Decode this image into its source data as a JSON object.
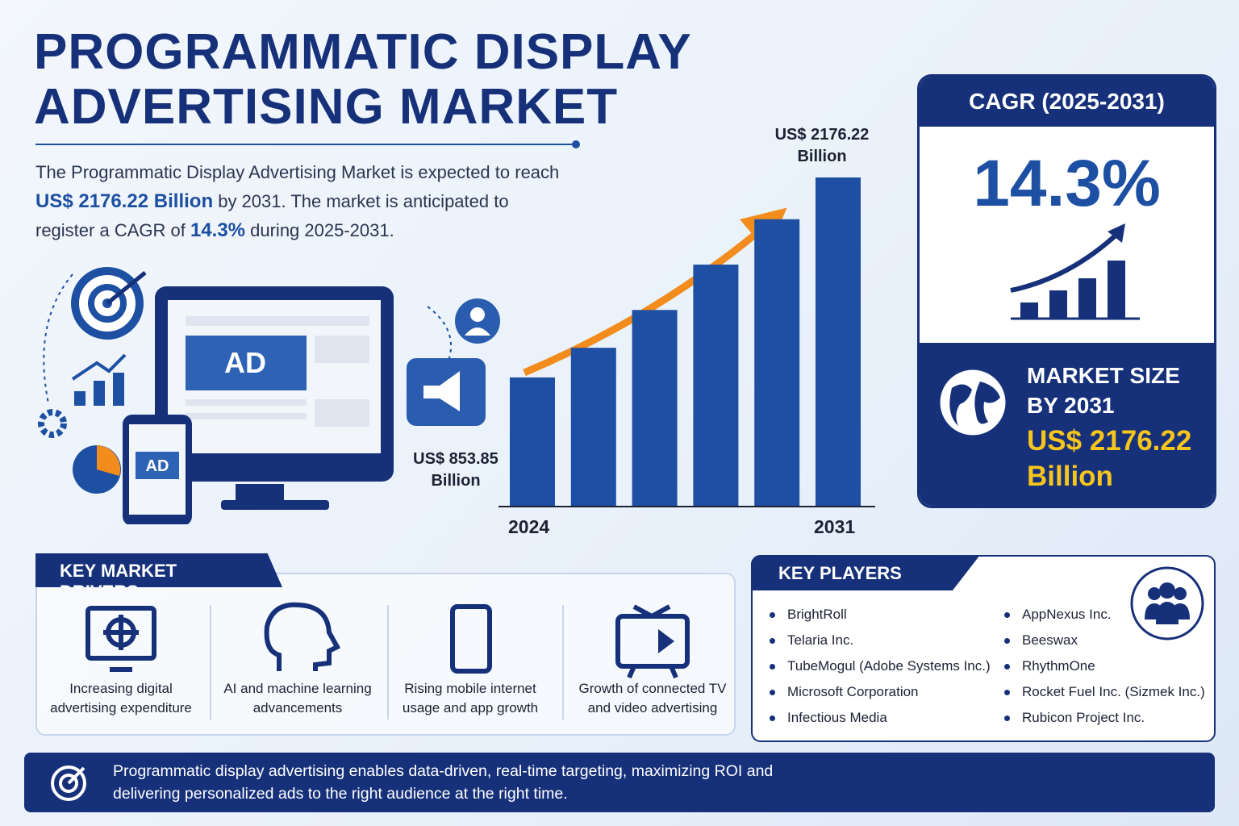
{
  "header": {
    "title_line1": "PROGRAMMATIC DISPLAY",
    "title_line2": "ADVERTISING MARKET"
  },
  "intro": {
    "parts": [
      "The Programmatic Display Advertising Market is expected to reach ",
      "US$ 2176.22 Billion",
      " by 2031. The market is anticipated to register a CAGR of ",
      "14.3%",
      " during 2025-2031."
    ]
  },
  "illustration": {
    "ad_large": "AD",
    "ad_small": "AD"
  },
  "chart_data": {
    "type": "bar",
    "categories": [
      "2024",
      null,
      null,
      null,
      null,
      "2031"
    ],
    "values": [
      853.85,
      1050,
      1300,
      1600,
      1900,
      2176.22
    ],
    "value_labels": [
      "US$ 853.85 Billion",
      null,
      null,
      null,
      null,
      "US$ 2176.22 Billion"
    ],
    "color": "#1f4fa3"
  },
  "cagr_card": {
    "title": "CAGR (2025-2031)",
    "value": "14.3%",
    "market_label_line1": "MARKET SIZE",
    "market_label_line2": "BY 2031",
    "market_value_line1": "US$ 2176.22",
    "market_value_line2": "Billion"
  },
  "drivers": {
    "title": "KEY MARKET DRIVERS",
    "items": [
      "Increasing digital advertising expenditure",
      "AI and machine learning advancements",
      "Rising mobile internet usage and app growth",
      "Growth of connected TV and video advertising"
    ]
  },
  "players": {
    "title": "KEY PLAYERS",
    "items": [
      "BrightRoll",
      "Telaria Inc.",
      "TubeMogul (Adobe Systems Inc.)",
      "Microsoft Corporation",
      "Infectious Media",
      "AppNexus Inc.",
      "Beeswax",
      "RhythmOne",
      "Rocket Fuel Inc. (Sizmek Inc.)",
      "Rubicon Project Inc."
    ]
  },
  "footer": {
    "text": "Programmatic display advertising enables data-driven, real-time targeting, maximizing ROI and delivering personalized ads to the right audience at the right time."
  }
}
